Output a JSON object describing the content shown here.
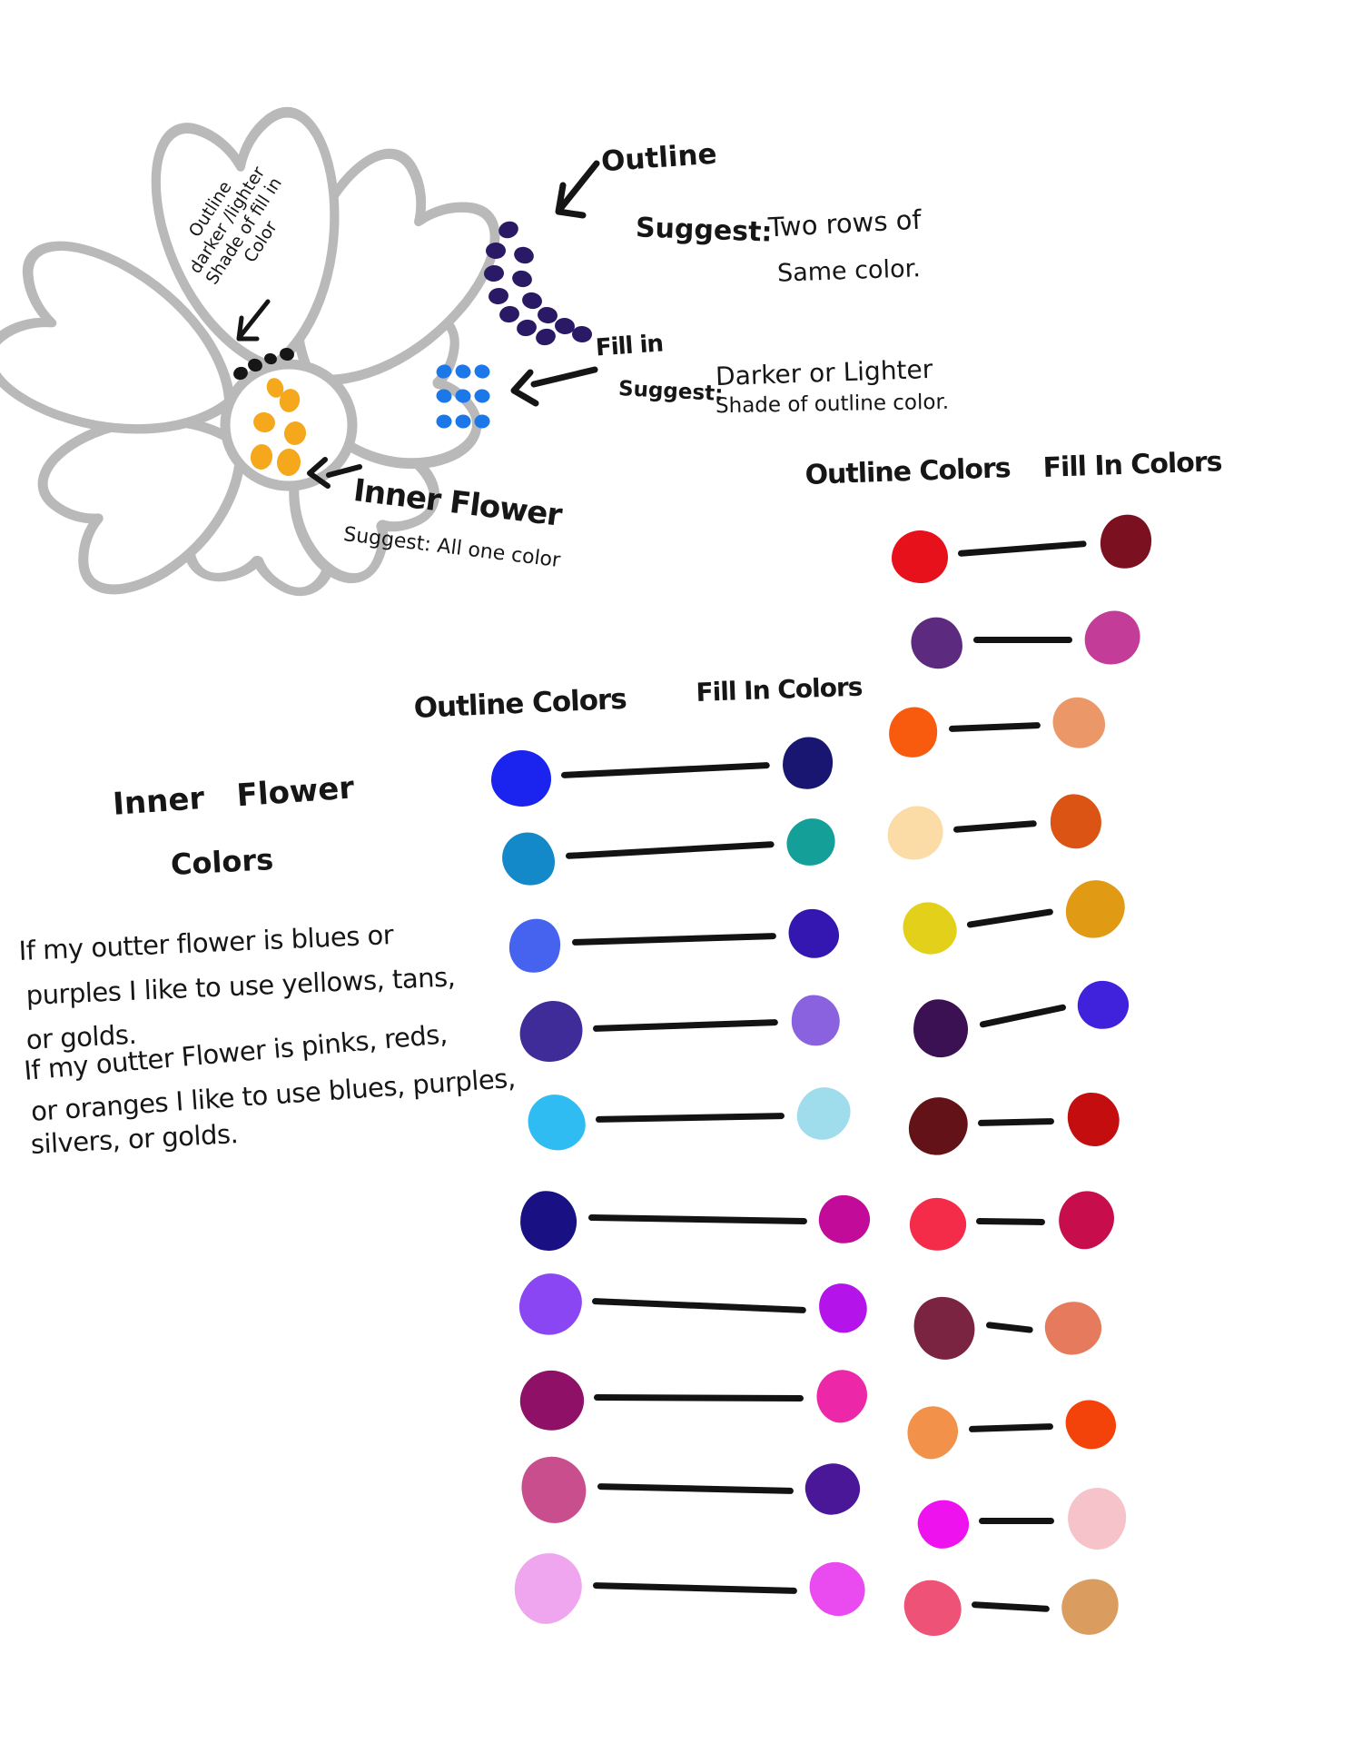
{
  "flower_diagram": {
    "petal_note": {
      "lines": [
        "Outline",
        "darker /lighter",
        "Shade of fill in",
        "Color"
      ]
    },
    "outline_note": {
      "title": "Outline",
      "prefix": "Suggest:",
      "line1": "Two rows of",
      "line2": "Same color."
    },
    "fill_note": {
      "title": "Fill in",
      "prefix": "Suggest:",
      "line1": "Darker or Lighter",
      "line2": "Shade of outline color."
    },
    "inner_note": {
      "title": "Inner Flower",
      "suggest": "Suggest: All one color"
    },
    "colors": {
      "petal_outline": "#b9b9b9",
      "outline_dots": "#2a1a66",
      "fill_dots": "#1c78e8",
      "inner_dots": "#f5a81c",
      "marker_dots": "#161616"
    }
  },
  "inner_flower_section": {
    "heading1": "Inner Flower",
    "heading2": "Colors",
    "lines": [
      "If my outter flower is blues or",
      "purples I like to use yellows, tans,",
      "or golds.",
      "If my outter Flower is pinks, reds,",
      "or oranges I like to use blues, purples,",
      "silvers, or golds."
    ]
  },
  "palette_blues": {
    "outline_header": "Outline Colors",
    "fill_header": "Fill In Colors",
    "pairs": [
      {
        "outline": "#1b24ee",
        "fill": "#181670"
      },
      {
        "outline": "#1489c9",
        "fill": "#14a099"
      },
      {
        "outline": "#4663f0",
        "fill": "#3417b0"
      },
      {
        "outline": "#3f2c98",
        "fill": "#8a62e0"
      },
      {
        "outline": "#2ebcf2",
        "fill": "#9fdcec"
      },
      {
        "outline": "#191183",
        "fill": "#c20c99"
      },
      {
        "outline": "#8a46f2",
        "fill": "#b413e9"
      },
      {
        "outline": "#8e1167",
        "fill": "#ed28a8"
      },
      {
        "outline": "#c94e8e",
        "fill": "#4a1798"
      },
      {
        "outline": "#efa6ef",
        "fill": "#ea4bf0"
      }
    ]
  },
  "palette_warm": {
    "outline_header": "Outline Colors",
    "fill_header": "Fill In Colors",
    "pairs": [
      {
        "outline": "#e6111b",
        "fill": "#7b1120"
      },
      {
        "outline": "#5c2b80",
        "fill": "#c23c98"
      },
      {
        "outline": "#f85a0e",
        "fill": "#ec9767"
      },
      {
        "outline": "#fbdba6",
        "fill": "#db5413"
      },
      {
        "outline": "#e3d01b",
        "fill": "#e09a13"
      },
      {
        "outline": "#3c1153",
        "fill": "#4022dc"
      },
      {
        "outline": "#631317",
        "fill": "#c40d0e"
      },
      {
        "outline": "#f52c49",
        "fill": "#c70d4c"
      },
      {
        "outline": "#7a2441",
        "fill": "#e57a5c"
      },
      {
        "outline": "#f29149",
        "fill": "#f4430a"
      },
      {
        "outline": "#ee13ee",
        "fill": "#f7c3ca"
      },
      {
        "outline": "#ee5377",
        "fill": "#db9c60"
      }
    ]
  }
}
